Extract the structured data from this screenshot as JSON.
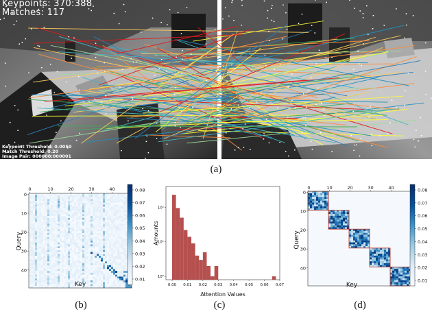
{
  "figure": {
    "top_panel": {
      "overlay": {
        "keypoints_text": "Keypoints: 370:388",
        "matches_text": "Matches: 117",
        "keypoint_threshold_text": "Keypoint Threshold: 0.0050",
        "match_threshold_text": "Match Threshold: 0.20",
        "image_pair_text": "Image Pair: 000000:000001"
      },
      "caption": "(a)"
    },
    "panels": [
      {
        "caption": "(b)",
        "xlabel": "Key",
        "ylabel": "Query"
      },
      {
        "caption": "(c)",
        "xlabel": "Attention Values",
        "ylabel": "Amounts"
      },
      {
        "caption": "(d)",
        "xlabel": "Key",
        "ylabel": "Query"
      }
    ]
  },
  "chart_data": [
    {
      "type": "heatmap",
      "xlabel": "Key",
      "ylabel": "Query",
      "x_ticks": [
        "0",
        "10",
        "20",
        "30",
        "40"
      ],
      "y_ticks": [
        "0",
        "10",
        "20",
        "30",
        "40"
      ],
      "size": 50,
      "colorbar_ticks": [
        "0.08",
        "0.07",
        "0.06",
        "0.05",
        "0.04",
        "0.03",
        "0.02",
        "0.01"
      ],
      "colormap": [
        "#f7fbff",
        "#deebf7",
        "#9ecae1",
        "#4292c6",
        "#08519c",
        "#08306b"
      ]
    },
    {
      "type": "bar",
      "xlabel": "Attention Values",
      "ylabel": "Amounts",
      "y_scale": "log",
      "x_ticks": [
        "0.00",
        "0.01",
        "0.02",
        "0.03",
        "0.04",
        "0.05",
        "0.06",
        "0.07"
      ],
      "y_ticks": [
        "10²",
        "10¹",
        "10⁰"
      ],
      "bar_color": "#b5504f",
      "bin_width": 0.0025,
      "bins": [
        {
          "x": 0.0,
          "count": 230
        },
        {
          "x": 0.0025,
          "count": 95
        },
        {
          "x": 0.005,
          "count": 50
        },
        {
          "x": 0.0075,
          "count": 22
        },
        {
          "x": 0.01,
          "count": 14
        },
        {
          "x": 0.0125,
          "count": 9
        },
        {
          "x": 0.015,
          "count": 4
        },
        {
          "x": 0.0175,
          "count": 3
        },
        {
          "x": 0.02,
          "count": 5
        },
        {
          "x": 0.0225,
          "count": 2
        },
        {
          "x": 0.025,
          "count": 1
        },
        {
          "x": 0.0275,
          "count": 2
        },
        {
          "x": 0.065,
          "count": 1
        }
      ],
      "xlim": [
        -0.004,
        0.07
      ],
      "ylim": [
        0.8,
        400
      ]
    },
    {
      "type": "heatmap",
      "xlabel": "Key",
      "ylabel": "Query",
      "x_ticks": [
        "0",
        "10",
        "20",
        "30",
        "40"
      ],
      "y_ticks": [
        "0",
        "10",
        "20",
        "30",
        "40"
      ],
      "size": 50,
      "blocks": [
        [
          0,
          10
        ],
        [
          10,
          20
        ],
        [
          20,
          30
        ],
        [
          30,
          40
        ],
        [
          40,
          50
        ]
      ],
      "block_outline_color": "#c0392b",
      "colorbar_ticks": [
        "0.08",
        "0.07",
        "0.06",
        "0.05",
        "0.04",
        "0.03",
        "0.02",
        "0.01"
      ],
      "colormap": [
        "#f7fbff",
        "#deebf7",
        "#9ecae1",
        "#4292c6",
        "#08519c",
        "#08306b"
      ]
    }
  ]
}
